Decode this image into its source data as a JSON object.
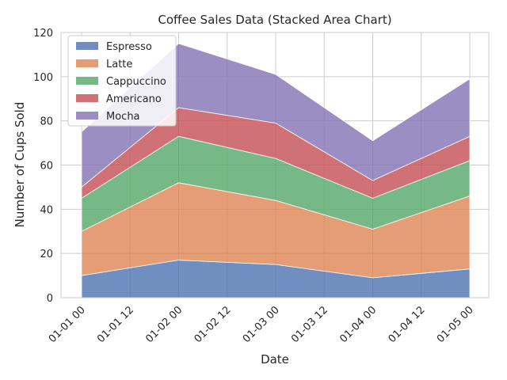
{
  "chart_data": {
    "type": "area",
    "stacked": true,
    "title": "Coffee Sales Data (Stacked Area Chart)",
    "xlabel": "Date",
    "ylabel": "Number of Cups Sold",
    "x": [
      "01-01 00",
      "01-02 00",
      "01-03 00",
      "01-04 00",
      "01-05 00"
    ],
    "x_ticks": [
      "01-01 00",
      "01-01 12",
      "01-02 00",
      "01-02 12",
      "01-03 00",
      "01-03 12",
      "01-04 00",
      "01-04 12",
      "01-05 00"
    ],
    "ylim": [
      0,
      120
    ],
    "y_ticks": [
      0,
      20,
      40,
      60,
      80,
      100,
      120
    ],
    "grid": true,
    "legend_position": "upper-left",
    "series": [
      {
        "name": "Espresso",
        "color": "#4c72b0",
        "values": [
          10,
          17,
          15,
          9,
          13
        ]
      },
      {
        "name": "Latte",
        "color": "#dd8452",
        "values": [
          20,
          35,
          29,
          22,
          33
        ]
      },
      {
        "name": "Cappuccino",
        "color": "#55a868",
        "values": [
          15,
          21,
          19,
          14,
          16
        ]
      },
      {
        "name": "Americano",
        "color": "#c44e52",
        "values": [
          5,
          13,
          16,
          8,
          11
        ]
      },
      {
        "name": "Mocha",
        "color": "#8172b3",
        "values": [
          25,
          29,
          22,
          18,
          26
        ]
      }
    ]
  }
}
